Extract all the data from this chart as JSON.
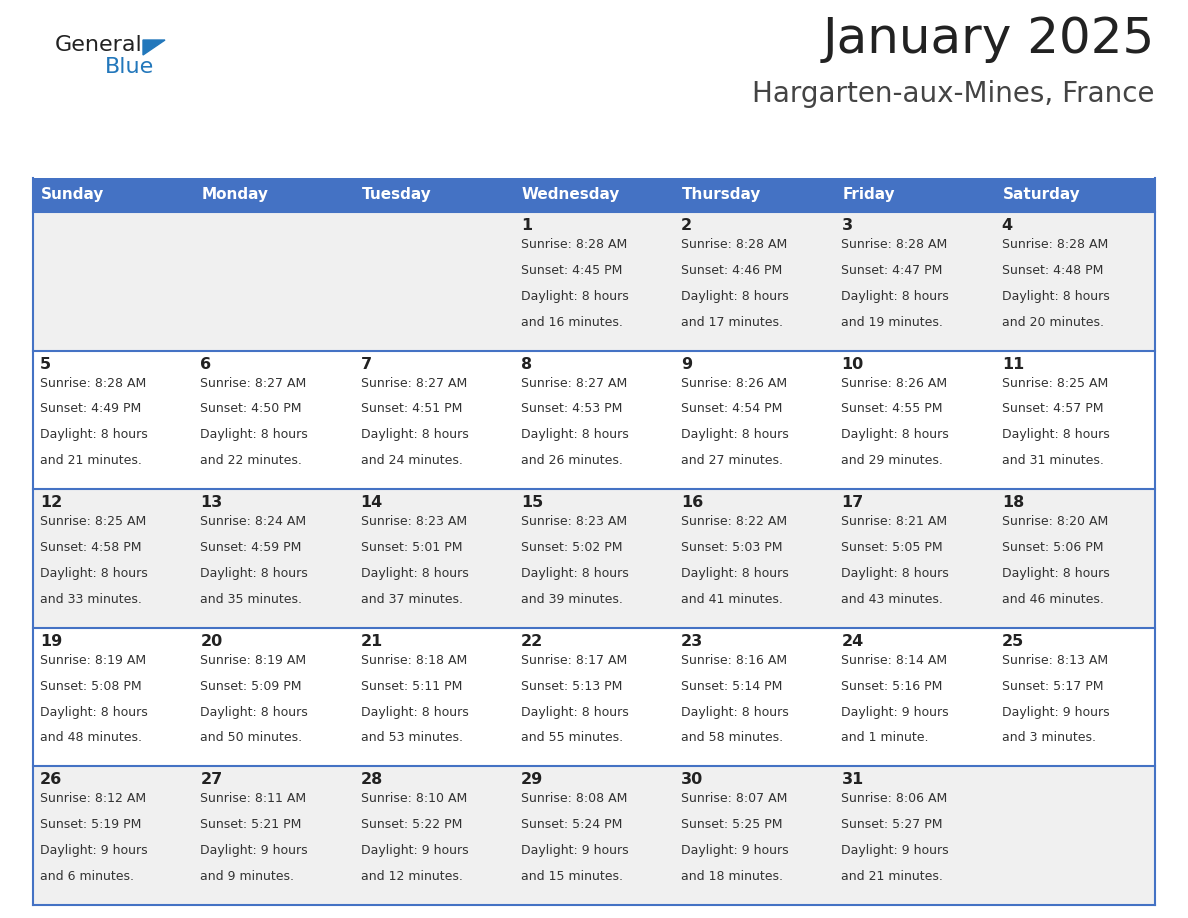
{
  "title": "January 2025",
  "subtitle": "Hargarten-aux-Mines, France",
  "days_of_week": [
    "Sunday",
    "Monday",
    "Tuesday",
    "Wednesday",
    "Thursday",
    "Friday",
    "Saturday"
  ],
  "header_bg": "#4472C4",
  "header_text": "#FFFFFF",
  "row_bg_even": "#F0F0F0",
  "row_bg_odd": "#FFFFFF",
  "cell_text": "#333333",
  "day_num_color": "#222222",
  "separator_color": "#4472C4",
  "title_color": "#222222",
  "subtitle_color": "#444444",
  "logo_general_color": "#222222",
  "logo_blue_color": "#2277BB",
  "calendar_data": {
    "week1": {
      "days": [
        null,
        null,
        null,
        1,
        2,
        3,
        4
      ],
      "sunrise": [
        null,
        null,
        null,
        "8:28 AM",
        "8:28 AM",
        "8:28 AM",
        "8:28 AM"
      ],
      "sunset": [
        null,
        null,
        null,
        "4:45 PM",
        "4:46 PM",
        "4:47 PM",
        "4:48 PM"
      ],
      "daylight": [
        null,
        null,
        null,
        "8 hours and 16 minutes.",
        "8 hours and 17 minutes.",
        "8 hours and 19 minutes.",
        "8 hours and 20 minutes."
      ]
    },
    "week2": {
      "days": [
        5,
        6,
        7,
        8,
        9,
        10,
        11
      ],
      "sunrise": [
        "8:28 AM",
        "8:27 AM",
        "8:27 AM",
        "8:27 AM",
        "8:26 AM",
        "8:26 AM",
        "8:25 AM"
      ],
      "sunset": [
        "4:49 PM",
        "4:50 PM",
        "4:51 PM",
        "4:53 PM",
        "4:54 PM",
        "4:55 PM",
        "4:57 PM"
      ],
      "daylight": [
        "8 hours and 21 minutes.",
        "8 hours and 22 minutes.",
        "8 hours and 24 minutes.",
        "8 hours and 26 minutes.",
        "8 hours and 27 minutes.",
        "8 hours and 29 minutes.",
        "8 hours and 31 minutes."
      ]
    },
    "week3": {
      "days": [
        12,
        13,
        14,
        15,
        16,
        17,
        18
      ],
      "sunrise": [
        "8:25 AM",
        "8:24 AM",
        "8:23 AM",
        "8:23 AM",
        "8:22 AM",
        "8:21 AM",
        "8:20 AM"
      ],
      "sunset": [
        "4:58 PM",
        "4:59 PM",
        "5:01 PM",
        "5:02 PM",
        "5:03 PM",
        "5:05 PM",
        "5:06 PM"
      ],
      "daylight": [
        "8 hours and 33 minutes.",
        "8 hours and 35 minutes.",
        "8 hours and 37 minutes.",
        "8 hours and 39 minutes.",
        "8 hours and 41 minutes.",
        "8 hours and 43 minutes.",
        "8 hours and 46 minutes."
      ]
    },
    "week4": {
      "days": [
        19,
        20,
        21,
        22,
        23,
        24,
        25
      ],
      "sunrise": [
        "8:19 AM",
        "8:19 AM",
        "8:18 AM",
        "8:17 AM",
        "8:16 AM",
        "8:14 AM",
        "8:13 AM"
      ],
      "sunset": [
        "5:08 PM",
        "5:09 PM",
        "5:11 PM",
        "5:13 PM",
        "5:14 PM",
        "5:16 PM",
        "5:17 PM"
      ],
      "daylight": [
        "8 hours and 48 minutes.",
        "8 hours and 50 minutes.",
        "8 hours and 53 minutes.",
        "8 hours and 55 minutes.",
        "8 hours and 58 minutes.",
        "9 hours and 1 minute.",
        "9 hours and 3 minutes."
      ]
    },
    "week5": {
      "days": [
        26,
        27,
        28,
        29,
        30,
        31,
        null
      ],
      "sunrise": [
        "8:12 AM",
        "8:11 AM",
        "8:10 AM",
        "8:08 AM",
        "8:07 AM",
        "8:06 AM",
        null
      ],
      "sunset": [
        "5:19 PM",
        "5:21 PM",
        "5:22 PM",
        "5:24 PM",
        "5:25 PM",
        "5:27 PM",
        null
      ],
      "daylight": [
        "9 hours and 6 minutes.",
        "9 hours and 9 minutes.",
        "9 hours and 12 minutes.",
        "9 hours and 15 minutes.",
        "9 hours and 18 minutes.",
        "9 hours and 21 minutes.",
        null
      ]
    }
  }
}
